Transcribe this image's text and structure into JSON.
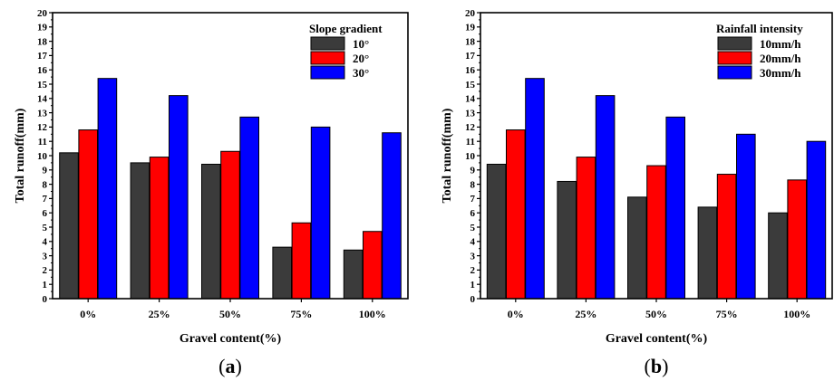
{
  "chart_data": [
    {
      "type": "bar",
      "panel_label": {
        "open": "(",
        "letter": "a",
        "close": ")"
      },
      "xlabel": "Gravel content(%)",
      "ylabel": "Total runoff(mm)",
      "ylim": [
        0,
        20
      ],
      "yticks": [
        "0",
        "1",
        "2",
        "3",
        "4",
        "5",
        "6",
        "7",
        "8",
        "9",
        "10",
        "11",
        "12",
        "13",
        "14",
        "15",
        "16",
        "17",
        "18",
        "19",
        "20"
      ],
      "categories": [
        "0%",
        "25%",
        "50%",
        "75%",
        "100%"
      ],
      "legend_title": "Slope gradient",
      "legend_position": "top-right",
      "grid": false,
      "series": [
        {
          "name": "10°",
          "color": "#3b3b3b",
          "values": [
            10.2,
            9.5,
            9.4,
            3.6,
            3.4
          ]
        },
        {
          "name": "20°",
          "color": "#ff0000",
          "values": [
            11.8,
            9.9,
            10.3,
            5.3,
            4.7
          ]
        },
        {
          "name": "30°",
          "color": "#0000ff",
          "values": [
            15.4,
            14.2,
            12.7,
            12.0,
            11.6
          ]
        }
      ]
    },
    {
      "type": "bar",
      "panel_label": {
        "open": "(",
        "letter": "b",
        "close": ")"
      },
      "xlabel": "Gravel content(%)",
      "ylabel": "Total runoff(mm)",
      "ylim": [
        0,
        20
      ],
      "yticks": [
        "0",
        "1",
        "2",
        "3",
        "4",
        "5",
        "6",
        "7",
        "8",
        "9",
        "10",
        "11",
        "12",
        "13",
        "14",
        "15",
        "16",
        "17",
        "18",
        "19",
        "20"
      ],
      "categories": [
        "0%",
        "25%",
        "50%",
        "75%",
        "100%"
      ],
      "legend_title": "Rainfall intensity",
      "legend_position": "top-right",
      "grid": false,
      "series": [
        {
          "name": "10mm/h",
          "color": "#3b3b3b",
          "values": [
            9.4,
            8.2,
            7.1,
            6.4,
            6.0
          ]
        },
        {
          "name": "20mm/h",
          "color": "#ff0000",
          "values": [
            11.8,
            9.9,
            9.3,
            8.7,
            8.3
          ]
        },
        {
          "name": "30mm/h",
          "color": "#0000ff",
          "values": [
            15.4,
            14.2,
            12.7,
            11.5,
            11.0
          ]
        }
      ]
    }
  ]
}
